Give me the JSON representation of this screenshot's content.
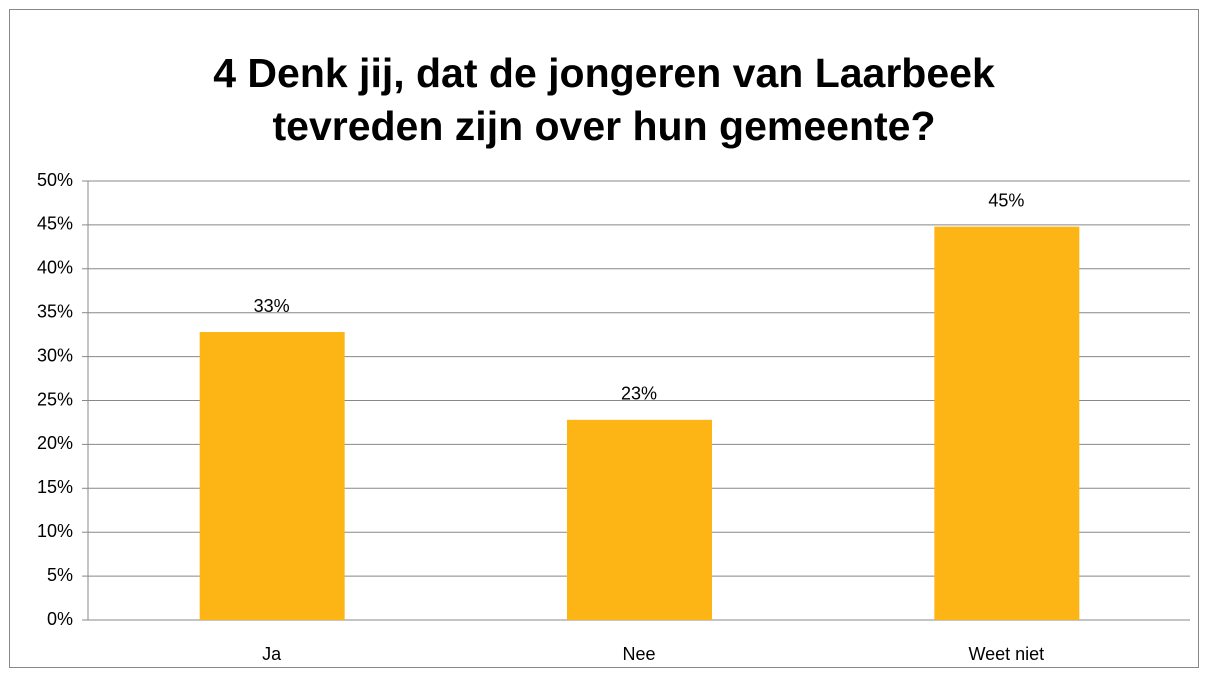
{
  "chart_data": {
    "type": "bar",
    "title": [
      "4 Denk jij, dat de jongeren van Laarbeek",
      "tevreden zijn over hun gemeente?"
    ],
    "categories": [
      "Ja",
      "Nee",
      "Weet niet"
    ],
    "values": [
      32.8,
      22.8,
      44.8
    ],
    "value_labels": [
      "33%",
      "23%",
      "45%"
    ],
    "color": "#fdb515",
    "ylim": [
      0,
      50
    ],
    "yticks": [
      {
        "value": 0,
        "label": "0%"
      },
      {
        "value": 5,
        "label": "5%"
      },
      {
        "value": 10,
        "label": "10%"
      },
      {
        "value": 15,
        "label": "15%"
      },
      {
        "value": 20,
        "label": "20%"
      },
      {
        "value": 25,
        "label": "25%"
      },
      {
        "value": 30,
        "label": "30%"
      },
      {
        "value": 35,
        "label": "35%"
      },
      {
        "value": 40,
        "label": "40%"
      },
      {
        "value": 45,
        "label": "45%"
      },
      {
        "value": 50,
        "label": "50%"
      }
    ],
    "grid": true
  }
}
